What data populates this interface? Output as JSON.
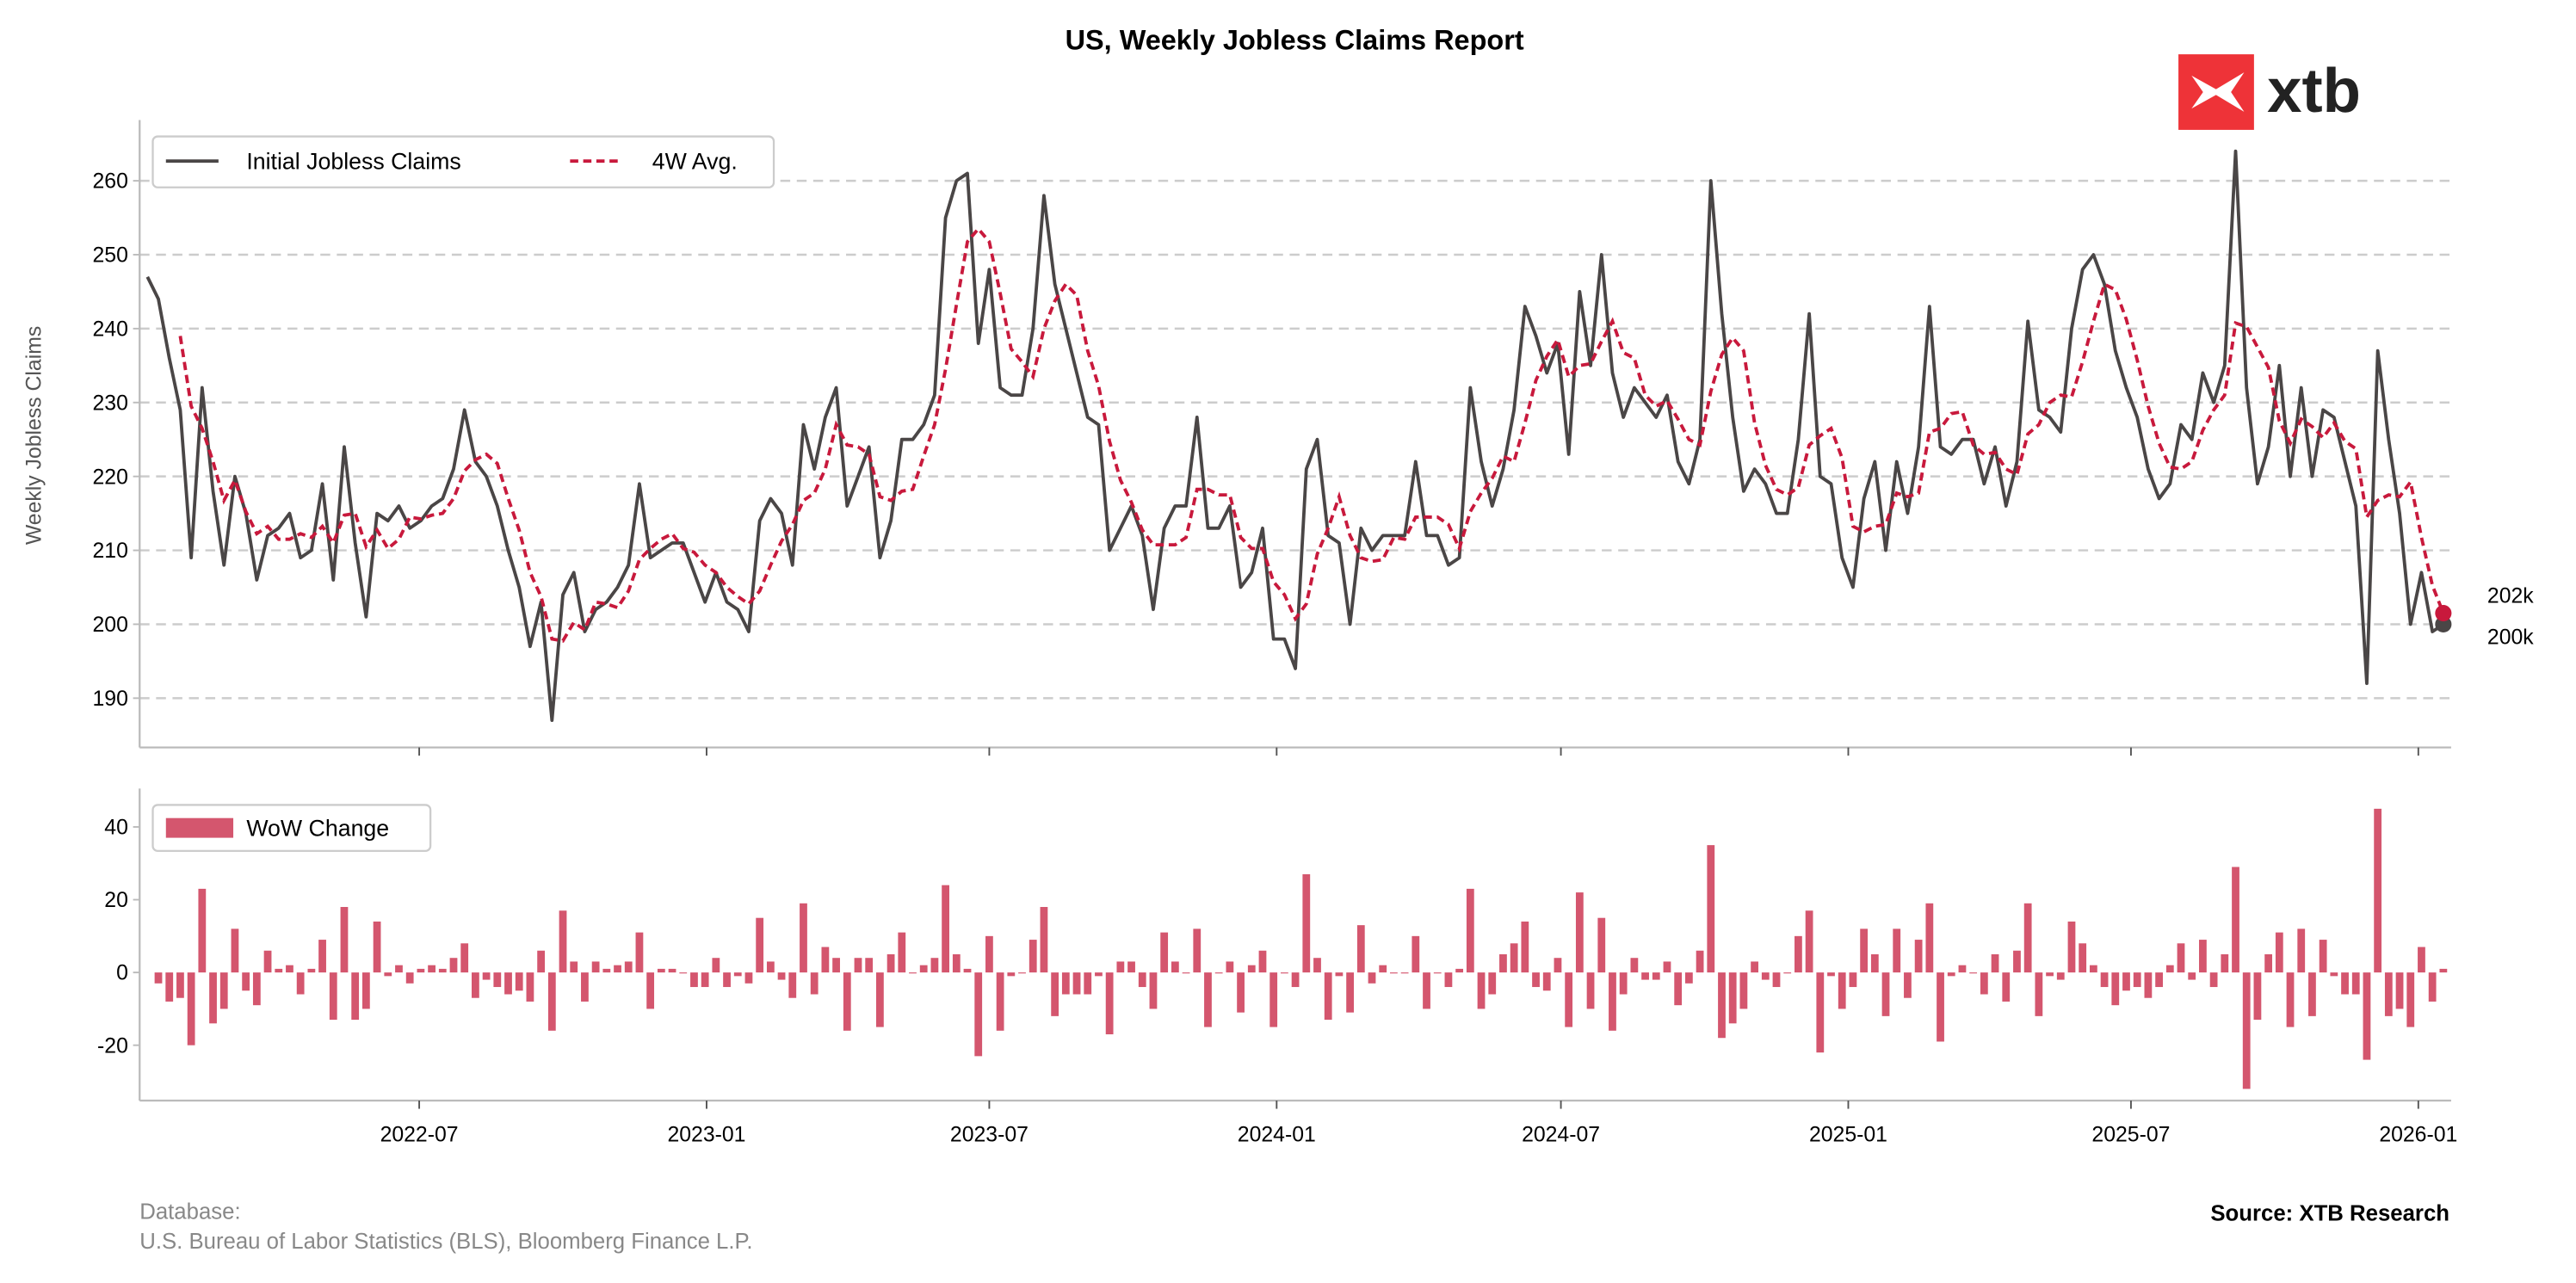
{
  "chart_data": [
    {
      "type": "line",
      "title": "US, Weekly Jobless Claims Report",
      "ylabel": "Weekly Jobless Claims",
      "xlabel": "",
      "ylim": [
        183,
        268
      ],
      "yticks": [
        190,
        200,
        210,
        220,
        230,
        240,
        250,
        260
      ],
      "grid": "horizontal dashed",
      "legend_placement": "top-left",
      "x_start": "2022-01-08",
      "x_frequency": "weekly",
      "series": [
        {
          "name": "Initial Jobless Claims",
          "color": "#4a4646",
          "style": "solid",
          "values": [
            247,
            244,
            236,
            229,
            209,
            232,
            218,
            208,
            220,
            215,
            206,
            212,
            213,
            215,
            209,
            210,
            219,
            206,
            224,
            211,
            201,
            215,
            214,
            216,
            213,
            214,
            216,
            217,
            221,
            229,
            222,
            220,
            216,
            210,
            205,
            197,
            203,
            187,
            204,
            207,
            199,
            202,
            203,
            205,
            208,
            219,
            209,
            210,
            211,
            211,
            207,
            203,
            207,
            203,
            202,
            199,
            214,
            217,
            215,
            208,
            227,
            221,
            228,
            232,
            216,
            220,
            224,
            209,
            214,
            225,
            225,
            227,
            231,
            255,
            260,
            261,
            238,
            248,
            232,
            231,
            231,
            240,
            258,
            246,
            240,
            234,
            228,
            227,
            210,
            213,
            216,
            212,
            202,
            213,
            216,
            216,
            228,
            213,
            213,
            216,
            205,
            207,
            213,
            198,
            198,
            194,
            221,
            225,
            212,
            211,
            200,
            213,
            210,
            212,
            212,
            212,
            222,
            212,
            212,
            208,
            209,
            232,
            222,
            216,
            221,
            229,
            243,
            239,
            234,
            238,
            223,
            245,
            235,
            250,
            234,
            228,
            232,
            230,
            228,
            231,
            222,
            219,
            225,
            260,
            242,
            228,
            218,
            221,
            219,
            215,
            215,
            225,
            242,
            220,
            219,
            209,
            205,
            217,
            222,
            210,
            222,
            215,
            224,
            243,
            224,
            223,
            225,
            225,
            219,
            224,
            216,
            222,
            241,
            229,
            228,
            226,
            240,
            248,
            250,
            246,
            237,
            232,
            228,
            221,
            217,
            219,
            227,
            225,
            234,
            230,
            235,
            264,
            232,
            219,
            224,
            235,
            220,
            232,
            220,
            229,
            228,
            222,
            216,
            192,
            237,
            225,
            215,
            200,
            207,
            199,
            200
          ]
        },
        {
          "name": "4W Avg.",
          "color": "#c8193c",
          "style": "dashed",
          "derived": "4-week moving average of Initial Jobless Claims"
        }
      ],
      "end_labels": [
        {
          "series": "4W Avg.",
          "text": "202k",
          "value": 201.5
        },
        {
          "series": "Initial Jobless Claims",
          "text": "200k",
          "value": 200
        }
      ]
    },
    {
      "type": "bar",
      "ylim": [
        -37,
        50
      ],
      "yticks": [
        -20,
        0,
        20,
        40
      ],
      "legend_placement": "top-left",
      "series": [
        {
          "name": "WoW Change",
          "color": "#d4566e",
          "derived": "week-over-week change of Initial Jobless Claims"
        }
      ],
      "xticks": [
        "2022-07",
        "2023-01",
        "2023-07",
        "2024-01",
        "2024-07",
        "2025-01",
        "2025-07",
        "2026-01"
      ]
    }
  ],
  "logo": {
    "text": "xtb",
    "color": "#ee3338"
  },
  "footer": {
    "database_label": "Database:",
    "database_sources": "U.S. Bureau of Labor Statistics (BLS), Bloomberg Finance L.P.",
    "source": "Source: XTB Research"
  }
}
